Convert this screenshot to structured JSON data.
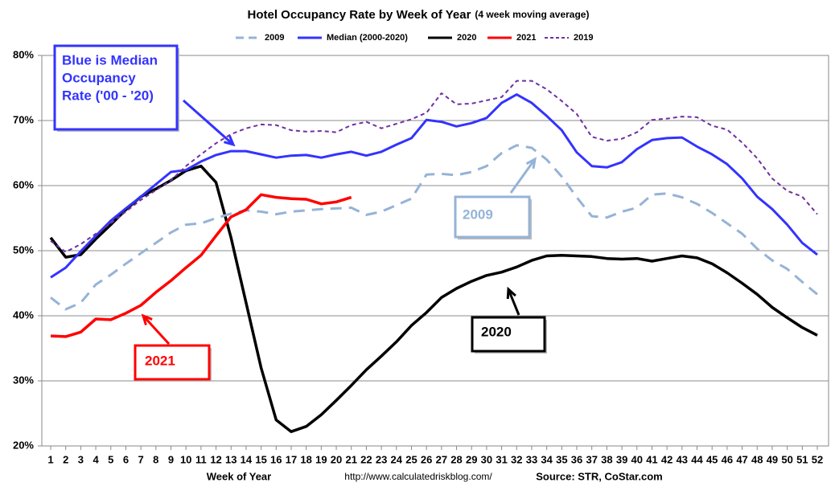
{
  "chart_data": {
    "type": "line",
    "title": "Hotel Occupancy Rate by  Week of Year",
    "subtitle": "(4 week moving average)",
    "x_label": "Week of Year",
    "url": "http://www.calculatedriskblog.com/",
    "source": "Source: STR, CoStar.com",
    "categories": [
      1,
      2,
      3,
      4,
      5,
      6,
      7,
      8,
      9,
      10,
      11,
      12,
      13,
      14,
      15,
      16,
      17,
      18,
      19,
      20,
      21,
      22,
      23,
      24,
      25,
      26,
      27,
      28,
      29,
      30,
      31,
      32,
      33,
      34,
      35,
      36,
      37,
      38,
      39,
      40,
      41,
      42,
      43,
      44,
      45,
      46,
      47,
      48,
      49,
      50,
      51,
      52
    ],
    "ylim": [
      20,
      80
    ],
    "yticks": [
      {
        "value": 20,
        "label": "20%"
      },
      {
        "value": 30,
        "label": "30%"
      },
      {
        "value": 40,
        "label": "40%"
      },
      {
        "value": 50,
        "label": "50%"
      },
      {
        "value": 60,
        "label": "60%"
      },
      {
        "value": 70,
        "label": "70%"
      },
      {
        "value": 80,
        "label": "80%"
      }
    ],
    "grid": true,
    "legend": "top",
    "series": [
      {
        "name": "2009",
        "color": "#95b3d7",
        "dash": "long",
        "width": 3,
        "values": [
          42.8,
          41,
          42,
          44.8,
          46.3,
          48,
          49.6,
          51.2,
          52.8,
          54,
          54.2,
          55,
          55.7,
          56.2,
          56,
          55.6,
          56,
          56.2,
          56.4,
          56.5,
          56.6,
          55.5,
          56,
          57,
          58,
          61.7,
          61.8,
          61.6,
          62.1,
          63,
          65,
          66.2,
          65.8,
          64,
          61.4,
          58.2,
          55.3,
          55.1,
          56,
          56.6,
          58.6,
          58.8,
          58.2,
          57.2,
          55.8,
          54.2,
          52.6,
          50.3,
          48.5,
          47.2,
          45.2,
          43.3
        ]
      },
      {
        "name": "Median (2000-2020)",
        "color": "#3333ff",
        "dash": "none",
        "width": 3,
        "values": [
          45.9,
          47.4,
          49.9,
          52.3,
          54.6,
          56.5,
          58.3,
          60.2,
          62.1,
          62.4,
          63.7,
          64.7,
          65.3,
          65.3,
          64.8,
          64.3,
          64.6,
          64.7,
          64.3,
          64.8,
          65.2,
          64.6,
          65.2,
          66.3,
          67.3,
          70.1,
          69.8,
          69.1,
          69.6,
          70.4,
          72.7,
          74,
          72.7,
          70.7,
          68.5,
          65.1,
          63,
          62.8,
          63.6,
          65.6,
          67,
          67.3,
          67.4,
          66,
          64.8,
          63.3,
          61.1,
          58.3,
          56.4,
          54,
          51.2,
          49.4
        ]
      },
      {
        "name": "2020",
        "color": "#000000",
        "dash": "none",
        "width": 3.5,
        "values": [
          52,
          49,
          49.4,
          51.8,
          54,
          56.3,
          58.3,
          59.5,
          60.8,
          62.3,
          63,
          60.5,
          52,
          42,
          32,
          24,
          22.2,
          23,
          24.8,
          27,
          29.3,
          31.7,
          33.8,
          36,
          38.5,
          40.5,
          42.8,
          44.2,
          45.3,
          46.2,
          46.7,
          47.5,
          48.5,
          49.2,
          49.3,
          49.2,
          49.1,
          48.8,
          48.7,
          48.8,
          48.4,
          48.8,
          49.2,
          48.9,
          48,
          46.6,
          45,
          43.3,
          41.3,
          39.7,
          38.2,
          37
        ]
      },
      {
        "name": "2021",
        "color": "#ff0000",
        "dash": "none",
        "width": 3.5,
        "values": [
          36.9,
          36.8,
          37.5,
          39.5,
          39.4,
          40.4,
          41.6,
          43.6,
          45.4,
          47.4,
          49.3,
          52.3,
          55.2,
          56.3,
          58.6,
          58.2,
          58,
          57.9,
          57.2,
          57.5,
          58.2,
          null,
          null,
          null,
          null,
          null,
          null,
          null,
          null,
          null,
          null,
          null,
          null,
          null,
          null,
          null,
          null,
          null,
          null,
          null,
          null,
          null,
          null,
          null,
          null,
          null,
          null,
          null,
          null,
          null,
          null,
          null
        ]
      },
      {
        "name": "2019",
        "color": "#7030a0",
        "dash": "short",
        "width": 2,
        "values": [
          51.5,
          49.8,
          51,
          52.6,
          54.2,
          56,
          57.8,
          59.3,
          60.8,
          63,
          64.8,
          66.5,
          67.9,
          68.8,
          69.4,
          69.3,
          68.5,
          68.3,
          68.4,
          68.2,
          69.3,
          69.8,
          68.8,
          69.5,
          70.2,
          71.2,
          74.2,
          72.5,
          72.6,
          73.1,
          73.6,
          76.1,
          76.1,
          74.8,
          73,
          71,
          67.5,
          66.9,
          67.2,
          68.2,
          70.1,
          70.3,
          70.6,
          70.5,
          69.2,
          68.6,
          66.6,
          64.2,
          61.1,
          59.2,
          58.3,
          55.6
        ]
      }
    ],
    "annotations": [
      {
        "lines": [
          "Blue is Median",
          "Occupancy",
          "Rate ('00 - '20)"
        ],
        "color": "#3333ff"
      },
      {
        "lines": [
          "2009"
        ],
        "color": "#95b3d7"
      },
      {
        "lines": [
          "2021"
        ],
        "color": "#ff0000"
      },
      {
        "lines": [
          "2020"
        ],
        "color": "#000000"
      }
    ]
  }
}
